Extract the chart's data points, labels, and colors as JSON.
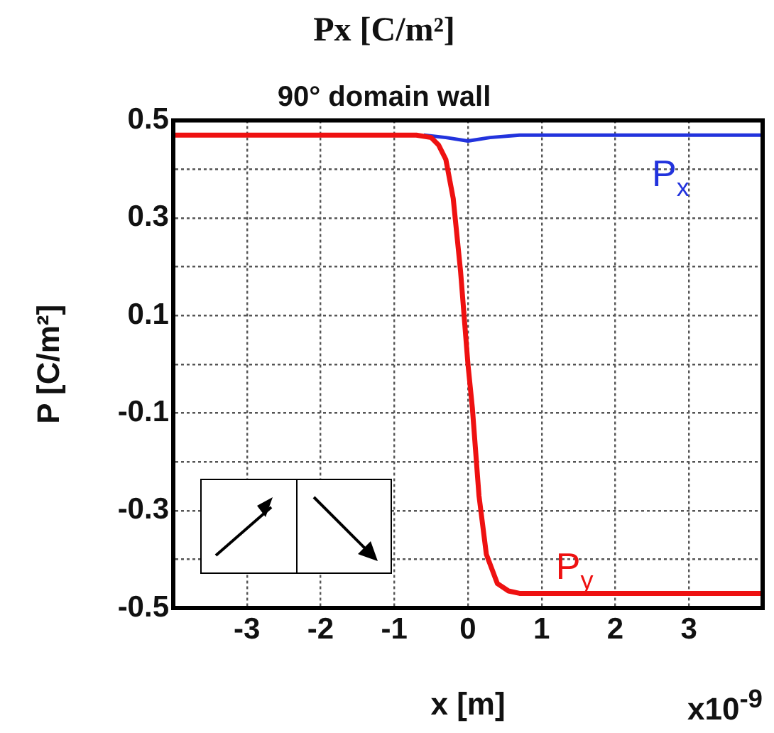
{
  "chart_data": {
    "type": "line",
    "title": "Px [C/m²]",
    "subtitle": "90° domain wall",
    "xlabel": "x [m]",
    "ylabel": "P [C/m²]",
    "series": [
      {
        "name": "P$_{x}$",
        "color": "#2233dd",
        "x": [
          -0.6,
          -0.3,
          0,
          0.3,
          0.7,
          1,
          4
        ],
        "values": [
          0.47,
          0.465,
          0.458,
          0.465,
          0.47,
          0.47,
          0.47
        ]
      },
      {
        "name": "P$_{y}$",
        "color": "#ee1111",
        "x": [
          -4,
          -1,
          -0.7,
          -0.5,
          -0.4,
          -0.3,
          -0.2,
          -0.1,
          0,
          0.06,
          0.15,
          0.25,
          0.4,
          0.55,
          0.7,
          1,
          4
        ],
        "values": [
          0.47,
          0.47,
          0.47,
          0.465,
          0.45,
          0.42,
          0.34,
          0.19,
          0,
          -0.09,
          -0.27,
          -0.39,
          -0.45,
          -0.465,
          -0.47,
          -0.47,
          -0.47
        ]
      }
    ],
    "xlim": [
      -4,
      4
    ],
    "xticks": [
      -3,
      -2,
      -1,
      0,
      1,
      2,
      3
    ],
    "ylim": [
      -0.5,
      0.5
    ],
    "yticks": [
      0.5,
      {
        "value": 0.4,
        "label": null
      },
      0.3,
      {
        "value": 0.2,
        "label": null
      },
      0.1,
      {
        "value": 0,
        "label": null
      },
      -0.1,
      {
        "value": -0.2,
        "label": null
      },
      -0.3,
      {
        "value": -0.4,
        "label": null
      },
      -0.5
    ],
    "grid": true,
    "legend": false,
    "marker": "none",
    "line_style": "solid",
    "annotations": [
      "x10$^{-9}$"
    ]
  }
}
